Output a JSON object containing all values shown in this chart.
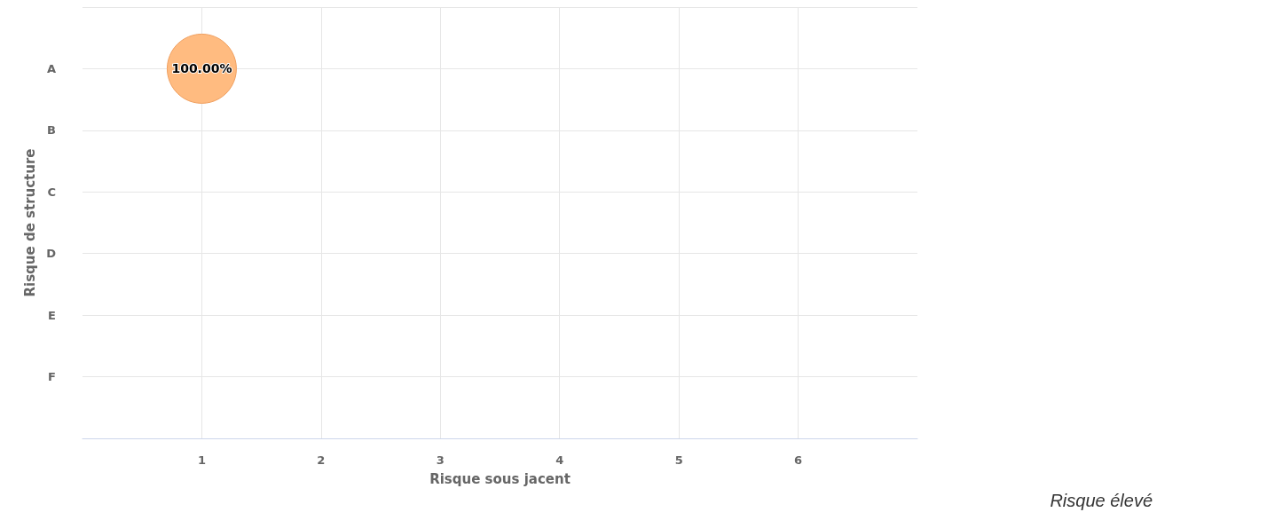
{
  "chart_data": {
    "type": "bubble",
    "orientation": "horizontal",
    "xlabel": "Risque sous jacent",
    "ylabel": "Risque de structure",
    "categories": [
      null,
      "A",
      "B",
      "C",
      "D",
      "E",
      "F",
      null
    ],
    "values": [
      null,
      1,
      null,
      null,
      null,
      null,
      null,
      null
    ],
    "sizes": [
      null,
      1,
      null,
      null,
      null,
      null,
      null,
      null
    ],
    "value_labels": [
      null,
      "100.00%",
      null,
      null,
      null,
      null,
      null,
      null
    ],
    "color": "#ffbb80",
    "xlim": [
      0,
      7
    ],
    "xticks": [
      1,
      2,
      3,
      4,
      5,
      6
    ],
    "grid": true,
    "annotations": [
      "Risque élevé"
    ]
  }
}
